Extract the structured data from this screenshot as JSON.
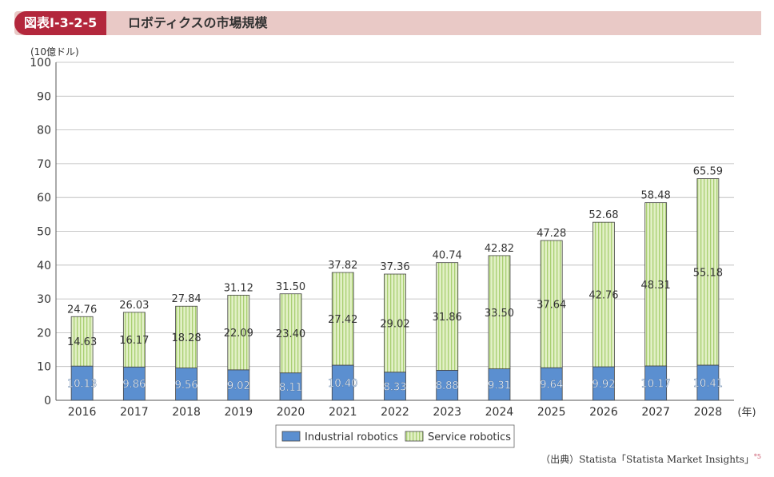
{
  "header": {
    "figure_number": "図表Ⅰ-3-2-5",
    "title": "ロボティクスの市場規模"
  },
  "source": {
    "text": "（出典）Statista「Statista Market Insights」",
    "note_mark": "*5"
  },
  "chart_data": {
    "type": "bar",
    "stacked": true,
    "ylabel": "(10億ドル)",
    "x_unit": "(年)",
    "ylim": [
      0,
      100
    ],
    "yticks": [
      0,
      10,
      20,
      30,
      40,
      50,
      60,
      70,
      80,
      90,
      100
    ],
    "grid": true,
    "legend_position": "bottom-center",
    "categories": [
      "2016",
      "2017",
      "2018",
      "2019",
      "2020",
      "2021",
      "2022",
      "2023",
      "2024",
      "2025",
      "2026",
      "2027",
      "2028"
    ],
    "series": [
      {
        "name": "Industrial robotics",
        "color": "#5b8fd0",
        "values": [
          10.13,
          9.86,
          9.56,
          9.02,
          8.11,
          10.4,
          8.33,
          8.88,
          9.31,
          9.64,
          9.92,
          10.17,
          10.41
        ]
      },
      {
        "name": "Service robotics",
        "color": "#d6eab0",
        "values": [
          14.63,
          16.17,
          18.28,
          22.09,
          23.4,
          27.42,
          29.02,
          31.86,
          33.5,
          37.64,
          42.76,
          48.31,
          55.18
        ]
      }
    ],
    "totals": [
      24.76,
      26.03,
      27.84,
      31.12,
      31.5,
      37.82,
      37.36,
      40.74,
      42.82,
      47.28,
      52.68,
      58.48,
      65.59
    ]
  }
}
